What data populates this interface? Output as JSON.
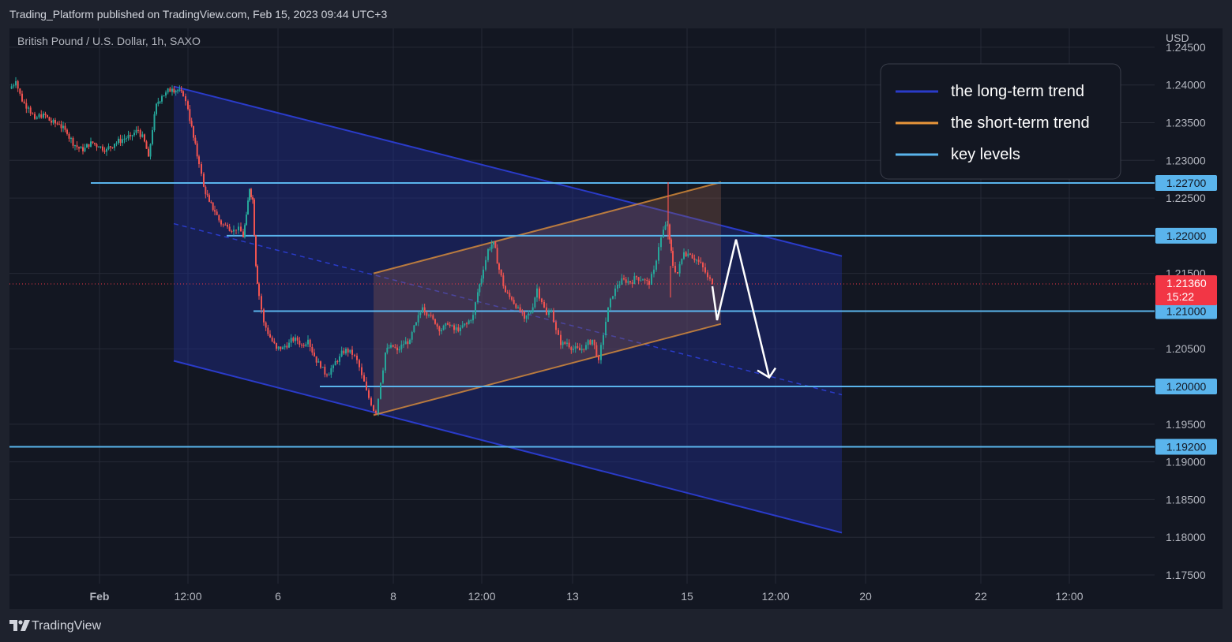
{
  "header": {
    "publisher_line": "Trading_Platform published on TradingView.com, Feb 15, 2023 09:44 UTC+3"
  },
  "footer": {
    "brand": "TradingView"
  },
  "colors": {
    "background": "#131722",
    "grid": "#262a36",
    "up_candle": "#26a69a",
    "down_candle": "#ef5350",
    "long_trend": "#2a3bc9",
    "short_trend": "#e8963a",
    "key_level": "#5ab4ec",
    "price_tag": "#f23645",
    "key_tag": "#5ab4ec"
  },
  "chart_data": {
    "type": "line",
    "title": "British Pound / U.S. Dollar, 1h, SAXO",
    "currency": "USD",
    "x_ticks": [
      "Feb",
      "12:00",
      "6",
      "8",
      "12:00",
      "13",
      "15",
      "12:00",
      "20",
      "22",
      "12:00"
    ],
    "y_ticks": [
      "1.24500",
      "1.24000",
      "1.23500",
      "1.23000",
      "1.22500",
      "1.21500",
      "1.20500",
      "1.19500",
      "1.19000",
      "1.18500",
      "1.18000",
      "1.17500"
    ],
    "ylim": [
      1.1705,
      1.2475
    ],
    "legend": [
      {
        "label": "the long-term trend",
        "color": "#2a3bc9"
      },
      {
        "label": "the short-term trend",
        "color": "#e8963a"
      },
      {
        "label": "key levels",
        "color": "#5ab4ec"
      }
    ],
    "key_levels": [
      {
        "value": 1.227,
        "label": "1.22700",
        "x_start": 115
      },
      {
        "value": 1.22,
        "label": "1.22000",
        "x_start": 287
      },
      {
        "value": 1.21,
        "label": "1.21000",
        "x_start": 321
      },
      {
        "value": 1.2,
        "label": "1.20000",
        "x_start": 405
      },
      {
        "value": 1.192,
        "label": "1.19200",
        "x_start": 12
      }
    ],
    "current_price": {
      "value": 1.2136,
      "label": "1.21360",
      "countdown": "15:22"
    },
    "price_path": [
      [
        12,
        1.2395
      ],
      [
        20,
        1.2405
      ],
      [
        28,
        1.2378
      ],
      [
        36,
        1.237
      ],
      [
        44,
        1.2355
      ],
      [
        55,
        1.2362
      ],
      [
        65,
        1.235
      ],
      [
        75,
        1.2348
      ],
      [
        85,
        1.2335
      ],
      [
        95,
        1.232
      ],
      [
        105,
        1.2312
      ],
      [
        115,
        1.2325
      ],
      [
        125,
        1.2318
      ],
      [
        135,
        1.2315
      ],
      [
        145,
        1.2322
      ],
      [
        155,
        1.2328
      ],
      [
        165,
        1.2332
      ],
      [
        175,
        1.234
      ],
      [
        183,
        1.2325
      ],
      [
        188,
        1.2305
      ],
      [
        193,
        1.234
      ],
      [
        198,
        1.2375
      ],
      [
        205,
        1.2385
      ],
      [
        210,
        1.239
      ],
      [
        218,
        1.2395
      ],
      [
        225,
        1.2393
      ],
      [
        232,
        1.2385
      ],
      [
        238,
        1.2368
      ],
      [
        245,
        1.233
      ],
      [
        252,
        1.2295
      ],
      [
        258,
        1.2265
      ],
      [
        265,
        1.2245
      ],
      [
        272,
        1.2232
      ],
      [
        280,
        1.2215
      ],
      [
        288,
        1.2212
      ],
      [
        296,
        1.2208
      ],
      [
        302,
        1.2212
      ],
      [
        308,
        1.2198
      ],
      [
        312,
        1.2228
      ],
      [
        316,
        1.2262
      ],
      [
        320,
        1.2248
      ],
      [
        324,
        1.216
      ],
      [
        328,
        1.212
      ],
      [
        334,
        1.2085
      ],
      [
        342,
        1.2065
      ],
      [
        350,
        1.205
      ],
      [
        358,
        1.2052
      ],
      [
        366,
        1.2058
      ],
      [
        374,
        1.2065
      ],
      [
        382,
        1.2055
      ],
      [
        390,
        1.2062
      ],
      [
        398,
        1.204
      ],
      [
        406,
        1.2025
      ],
      [
        414,
        1.2015
      ],
      [
        422,
        1.2028
      ],
      [
        430,
        1.204
      ],
      [
        438,
        1.205
      ],
      [
        446,
        1.2042
      ],
      [
        452,
        1.2035
      ],
      [
        458,
        1.2015
      ],
      [
        464,
        1.1995
      ],
      [
        470,
        1.1975
      ],
      [
        476,
        1.1965
      ],
      [
        482,
        1.2005
      ],
      [
        488,
        1.2045
      ],
      [
        495,
        1.2055
      ],
      [
        503,
        1.2048
      ],
      [
        511,
        1.2056
      ],
      [
        519,
        1.2062
      ],
      [
        527,
        1.2085
      ],
      [
        535,
        1.2105
      ],
      [
        543,
        1.2095
      ],
      [
        551,
        1.2083
      ],
      [
        559,
        1.2075
      ],
      [
        567,
        1.2082
      ],
      [
        575,
        1.2075
      ],
      [
        583,
        1.2078
      ],
      [
        591,
        1.2083
      ],
      [
        599,
        1.2095
      ],
      [
        605,
        1.2125
      ],
      [
        612,
        1.2155
      ],
      [
        618,
        1.2182
      ],
      [
        625,
        1.2192
      ],
      [
        632,
        1.2155
      ],
      [
        640,
        1.2125
      ],
      [
        648,
        1.2115
      ],
      [
        656,
        1.2105
      ],
      [
        664,
        1.209
      ],
      [
        672,
        1.2098
      ],
      [
        680,
        1.213
      ],
      [
        686,
        1.2112
      ],
      [
        692,
        1.2095
      ],
      [
        698,
        1.21
      ],
      [
        704,
        1.2075
      ],
      [
        710,
        1.2055
      ],
      [
        718,
        1.2058
      ],
      [
        726,
        1.205
      ],
      [
        734,
        1.2048
      ],
      [
        742,
        1.2055
      ],
      [
        750,
        1.2062
      ],
      [
        758,
        1.2035
      ],
      [
        764,
        1.2068
      ],
      [
        770,
        1.2105
      ],
      [
        776,
        1.212
      ],
      [
        782,
        1.2135
      ],
      [
        790,
        1.2142
      ],
      [
        798,
        1.2138
      ],
      [
        806,
        1.2145
      ],
      [
        814,
        1.2142
      ],
      [
        822,
        1.2135
      ],
      [
        828,
        1.2155
      ],
      [
        834,
        1.2185
      ],
      [
        840,
        1.2208
      ],
      [
        845,
        1.2215
      ],
      [
        848,
        1.2195
      ],
      [
        852,
        1.216
      ],
      [
        858,
        1.215
      ],
      [
        866,
        1.2178
      ],
      [
        874,
        1.2175
      ],
      [
        882,
        1.2168
      ],
      [
        890,
        1.2158
      ],
      [
        896,
        1.2145
      ],
      [
        902,
        1.2136
      ]
    ],
    "long_trend_channel": {
      "upper": [
        [
          220,
          1.2398
        ],
        [
          1066,
          1.2173
        ]
      ],
      "lower": [
        [
          220,
          1.2034
        ],
        [
          1066,
          1.1806
        ]
      ],
      "mid_dashed": [
        [
          220,
          1.2216
        ],
        [
          1066,
          1.1989
        ]
      ]
    },
    "short_trend_channel": {
      "upper": [
        [
          473,
          1.215
        ],
        [
          913,
          1.2271
        ]
      ],
      "lower": [
        [
          473,
          1.1962
        ],
        [
          913,
          1.2083
        ]
      ]
    },
    "projection": [
      [
        902,
        1.2133
      ],
      [
        908,
        1.2088
      ],
      [
        932,
        1.2195
      ],
      [
        974,
        1.2012
      ]
    ]
  }
}
